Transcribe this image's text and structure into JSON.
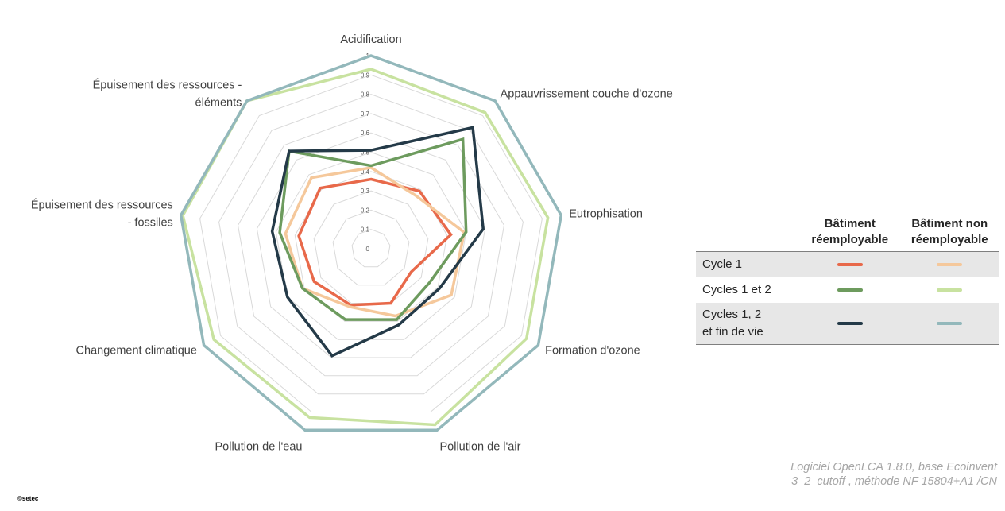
{
  "chart_data": {
    "type": "radar",
    "axes": [
      "Acidification",
      "Appauvrissement couche d'ozone",
      "Eutrophisation",
      "Formation d'ozone",
      "Pollution de l'air",
      "Pollution de l'eau",
      "Changement climatique",
      "Épuisement des ressources\n- fossiles",
      "Épuisement des ressources -\néléments"
    ],
    "tick_labels": [
      "0",
      "0,1",
      "0,2",
      "0,3",
      "0,4",
      "0,5",
      "0,6",
      "0,7",
      "0,8",
      "0,9",
      "1"
    ],
    "range": [
      0,
      1
    ],
    "series": [
      {
        "name": "Bâtiment réemployable - Cycle 1",
        "color": "#e8694a",
        "values": [
          0.36,
          0.39,
          0.42,
          0.24,
          0.3,
          0.31,
          0.34,
          0.38,
          0.41
        ]
      },
      {
        "name": "Bâtiment non réemployable - Cycle 1",
        "color": "#f5c89b",
        "values": [
          0.42,
          0.36,
          0.49,
          0.48,
          0.37,
          0.32,
          0.41,
          0.45,
          0.48
        ]
      },
      {
        "name": "Bâtiment réemployable - Cycles 1 et 2",
        "color": "#6d9b5e",
        "values": [
          0.43,
          0.74,
          0.5,
          0.35,
          0.39,
          0.39,
          0.41,
          0.48,
          0.66
        ]
      },
      {
        "name": "Bâtiment non réemployable - Cycles 1 et 2",
        "color": "#c8e2a0",
        "values": [
          0.93,
          0.92,
          0.93,
          0.93,
          0.97,
          0.93,
          0.94,
          0.99,
          1.0
        ]
      },
      {
        "name": "Bâtiment réemployable - Cycles 1, 2 et fin de vie",
        "color": "#243a48",
        "values": [
          0.51,
          0.82,
          0.59,
          0.41,
          0.42,
          0.59,
          0.5,
          0.52,
          0.66
        ]
      },
      {
        "name": "Bâtiment non réemployable - Cycles 1, 2 et fin de vie",
        "color": "#93b8bb",
        "values": [
          1.0,
          1.0,
          1.0,
          1.0,
          1.0,
          1.0,
          1.0,
          1.0,
          1.0
        ]
      }
    ],
    "grid": true,
    "legend_position": "right"
  },
  "legend": {
    "col1": "Bâtiment\nréemployable",
    "col2": "Bâtiment non\nréemployable",
    "rows": [
      {
        "label": "Cycle 1",
        "color_reuse": "#e8694a",
        "color_nonreuse": "#f5c89b"
      },
      {
        "label": "Cycles 1 et 2",
        "color_reuse": "#6d9b5e",
        "color_nonreuse": "#c8e2a0"
      },
      {
        "label": "Cycles 1, 2\net fin de vie",
        "color_reuse": "#243a48",
        "color_nonreuse": "#93b8bb"
      }
    ]
  },
  "source_line1": "Logiciel OpenLCA 1.8.0, base Ecoinvent",
  "source_line2": "3_2_cutoff , méthode NF 15804+A1 /CN",
  "copyright": "©setec"
}
